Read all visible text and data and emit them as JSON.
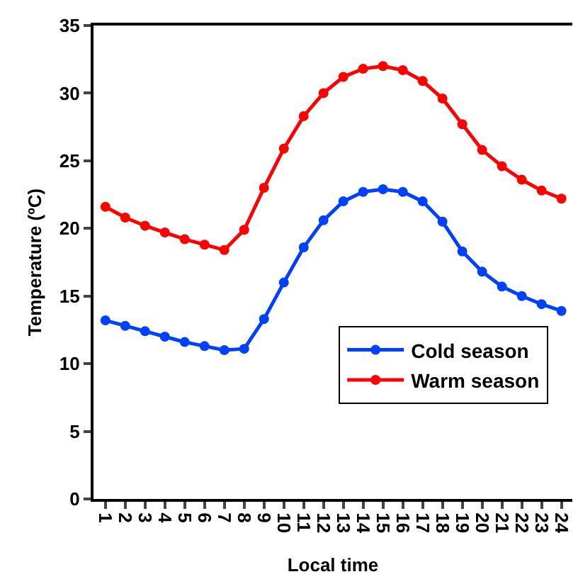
{
  "chart_data": {
    "type": "line",
    "xlabel": "Local time",
    "ylabel": "Temperature (ºC)",
    "categories": [
      "1",
      "2",
      "3",
      "4",
      "5",
      "6",
      "7",
      "8",
      "9",
      "10",
      "11",
      "12",
      "13",
      "14",
      "15",
      "16",
      "17",
      "18",
      "19",
      "20",
      "21",
      "22",
      "23",
      "24"
    ],
    "series": [
      {
        "name": "Cold season",
        "color": "#0040ff",
        "values": [
          13.2,
          12.8,
          12.4,
          12.0,
          11.6,
          11.3,
          11.0,
          11.1,
          13.3,
          16.0,
          18.6,
          20.6,
          22.0,
          22.7,
          22.9,
          22.7,
          22.0,
          20.5,
          18.3,
          16.8,
          15.7,
          15.0,
          14.4,
          13.9
        ]
      },
      {
        "name": "Warm season",
        "color": "#ff0000",
        "values": [
          21.6,
          20.8,
          20.2,
          19.7,
          19.2,
          18.8,
          18.4,
          19.9,
          23.0,
          25.9,
          28.3,
          30.0,
          31.2,
          31.8,
          32.0,
          31.7,
          30.9,
          29.6,
          27.7,
          25.8,
          24.6,
          23.6,
          22.8,
          22.2
        ]
      }
    ],
    "ylim": [
      0,
      35
    ],
    "yticks": [
      0,
      5,
      10,
      15,
      20,
      25,
      30,
      35
    ],
    "grid": false,
    "legend": "bottom right",
    "marker": "circle",
    "line_style": "solid"
  }
}
